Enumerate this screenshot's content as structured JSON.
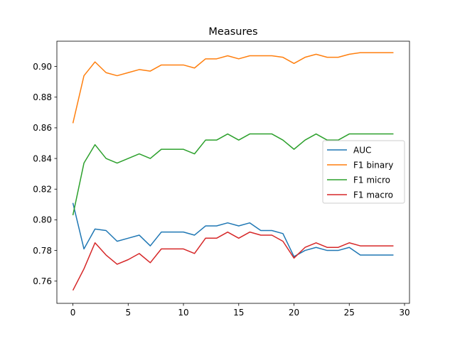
{
  "chart_data": {
    "type": "line",
    "title": "Measures",
    "xlabel": "",
    "ylabel": "",
    "xlim": [
      -1.45,
      30.45
    ],
    "ylim": [
      0.7455,
      0.9165
    ],
    "xticks": [
      0,
      5,
      10,
      15,
      20,
      25,
      30
    ],
    "yticks": [
      0.76,
      0.78,
      0.8,
      0.82,
      0.84,
      0.86,
      0.88,
      0.9
    ],
    "ytick_labels": [
      "0.76",
      "0.78",
      "0.80",
      "0.82",
      "0.84",
      "0.86",
      "0.88",
      "0.90"
    ],
    "grid": false,
    "legend_position": "center-right",
    "x": [
      0,
      1,
      2,
      3,
      4,
      5,
      6,
      7,
      8,
      9,
      10,
      11,
      12,
      13,
      14,
      15,
      16,
      17,
      18,
      19,
      20,
      21,
      22,
      23,
      24,
      25,
      26,
      27,
      28,
      29
    ],
    "series": [
      {
        "name": "AUC",
        "color": "#1f77b4",
        "values": [
          0.811,
          0.781,
          0.794,
          0.793,
          0.786,
          0.788,
          0.79,
          0.783,
          0.792,
          0.792,
          0.792,
          0.79,
          0.796,
          0.796,
          0.798,
          0.796,
          0.798,
          0.793,
          0.793,
          0.791,
          0.776,
          0.78,
          0.782,
          0.78,
          0.78,
          0.782,
          0.777,
          0.777,
          0.777,
          0.777
        ]
      },
      {
        "name": "F1 binary",
        "color": "#ff7f0e",
        "values": [
          0.863,
          0.894,
          0.903,
          0.896,
          0.894,
          0.896,
          0.898,
          0.897,
          0.901,
          0.901,
          0.901,
          0.899,
          0.905,
          0.905,
          0.907,
          0.905,
          0.907,
          0.907,
          0.907,
          0.906,
          0.902,
          0.906,
          0.908,
          0.906,
          0.906,
          0.908,
          0.909,
          0.909,
          0.909,
          0.909
        ]
      },
      {
        "name": "F1 micro",
        "color": "#2ca02c",
        "values": [
          0.803,
          0.837,
          0.849,
          0.84,
          0.837,
          0.84,
          0.843,
          0.84,
          0.846,
          0.846,
          0.846,
          0.843,
          0.852,
          0.852,
          0.856,
          0.852,
          0.856,
          0.856,
          0.856,
          0.852,
          0.846,
          0.852,
          0.856,
          0.852,
          0.852,
          0.856,
          0.856,
          0.856,
          0.856,
          0.856
        ]
      },
      {
        "name": "F1 macro",
        "color": "#d62728",
        "values": [
          0.754,
          0.768,
          0.785,
          0.777,
          0.771,
          0.774,
          0.778,
          0.772,
          0.781,
          0.781,
          0.781,
          0.778,
          0.788,
          0.788,
          0.792,
          0.788,
          0.792,
          0.79,
          0.79,
          0.786,
          0.775,
          0.782,
          0.785,
          0.782,
          0.782,
          0.785,
          0.783,
          0.783,
          0.783,
          0.783
        ]
      }
    ]
  }
}
